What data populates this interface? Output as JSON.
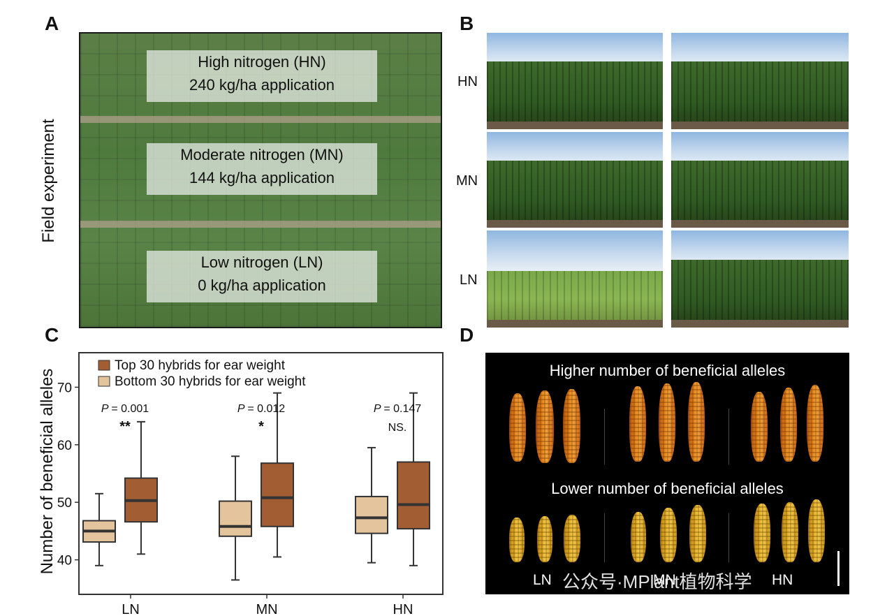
{
  "panels": {
    "a": {
      "letter": "A",
      "side_label": "Field experiment",
      "boxes": [
        {
          "line1": "High nitrogen (HN)",
          "line2": "240 kg/ha application"
        },
        {
          "line1": "Moderate nitrogen (MN)",
          "line2": "144 kg/ha application"
        },
        {
          "line1": "Low nitrogen (LN)",
          "line2": "0 kg/ha application"
        }
      ]
    },
    "b": {
      "letter": "B",
      "row_labels": [
        "HN",
        "MN",
        "LN"
      ]
    },
    "c": {
      "letter": "C"
    },
    "d": {
      "letter": "D",
      "top_text": "Higher number of beneficial alleles",
      "bottom_text": "Lower number of beneficial alleles",
      "x_labels": [
        "LN",
        "MN",
        "HN"
      ],
      "watermark": "公众号·MPlant植物科学"
    }
  },
  "colors": {
    "top30": "#a35d33",
    "bottom30": "#e3c49c",
    "frame": "#333333"
  },
  "chart_data": {
    "type": "box",
    "categories": [
      "LN",
      "MN",
      "HN"
    ],
    "ylabel": "Number of beneficial alleles",
    "ylim": [
      34,
      76
    ],
    "yticks": [
      40,
      50,
      60,
      70
    ],
    "legend_position": "top-left",
    "series": [
      {
        "name": "Top 30 hybrids for ear weight",
        "color": "#a35d33",
        "boxes": [
          {
            "whislo": 41,
            "q1": 46.6,
            "med": 50.3,
            "q3": 54.2,
            "whishi": 64
          },
          {
            "whislo": 40.5,
            "q1": 45.8,
            "med": 50.8,
            "q3": 56.8,
            "whishi": 69
          },
          {
            "whislo": 39,
            "q1": 45.4,
            "med": 49.6,
            "q3": 57.0,
            "whishi": 69
          }
        ]
      },
      {
        "name": "Bottom 30 hybrids for ear weight",
        "color": "#e3c49c",
        "boxes": [
          {
            "whislo": 39,
            "q1": 43.1,
            "med": 45.0,
            "q3": 46.8,
            "whishi": 51.5
          },
          {
            "whislo": 36.5,
            "q1": 44.1,
            "med": 45.8,
            "q3": 50.2,
            "whishi": 58
          },
          {
            "whislo": 39.5,
            "q1": 44.6,
            "med": 47.3,
            "q3": 51.0,
            "whishi": 59.5
          }
        ]
      }
    ],
    "annotations": [
      {
        "p_label": "P",
        "p_value": "= 0.001",
        "sig": "**"
      },
      {
        "p_label": "P",
        "p_value": "= 0.012",
        "sig": "*"
      },
      {
        "p_label": "P",
        "p_value": "= 0.147",
        "sig": "NS."
      }
    ]
  }
}
